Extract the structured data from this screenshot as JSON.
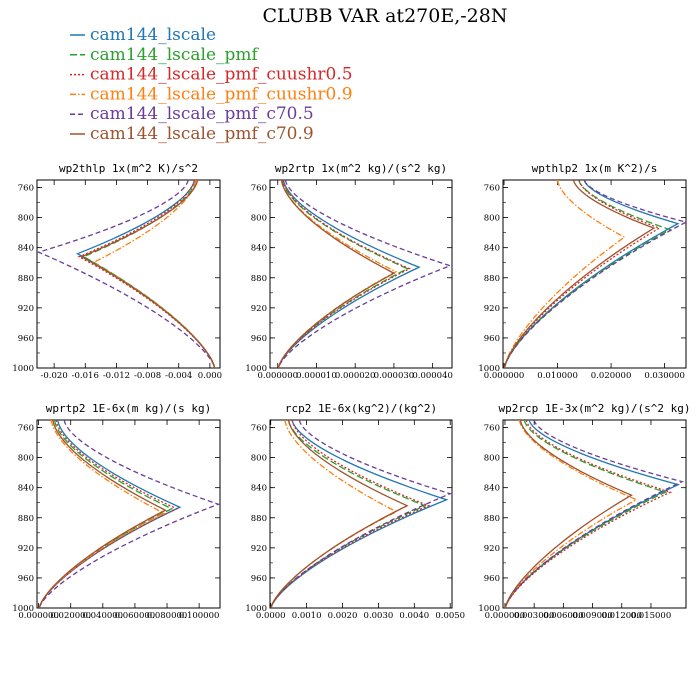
{
  "figure": {
    "title": "CLUBB VAR at270E,-28N"
  },
  "legend": [
    {
      "label": "cam144_lscale",
      "color": "#1f77b4",
      "dash": "solid"
    },
    {
      "label": "cam144_lscale_pmf",
      "color": "#2ca02c",
      "dash": "longdash"
    },
    {
      "label": "cam144_lscale_pmf_cuushr0.5",
      "color": "#d62728",
      "dash": "dot"
    },
    {
      "label": "cam144_lscale_pmf_cuushr0.9",
      "color": "#ff7f0e",
      "dash": "dashdot"
    },
    {
      "label": "cam144_lscale_pmf_c70.5",
      "color": "#6a3d9a",
      "dash": "dash"
    },
    {
      "label": "cam144_lscale_pmf_c70.9",
      "color": "#a0522d",
      "dash": "solid"
    }
  ],
  "chart_data": [
    {
      "type": "line",
      "title": "wp2thlp  1x(m^2 K)/s^2",
      "ylim": [
        1000,
        750
      ],
      "yticks": [
        760,
        800,
        840,
        880,
        920,
        960,
        1000
      ],
      "xlim": [
        -0.0222,
        0.0013
      ],
      "xticks": [
        -0.02,
        -0.016,
        -0.012,
        -0.008,
        -0.004,
        0.0
      ],
      "xtick_labels": [
        "-0.020",
        "-0.016",
        "-0.012",
        "-0.008",
        "-0.004",
        "0.000"
      ],
      "profile": {
        "kind": "neg",
        "top_y": 750,
        "bottom_y": 1000,
        "bottom_x": 0.0006,
        "top_x": -0.0004,
        "top_frac": 0.15
      },
      "series": [
        {
          "name": "cam144_lscale",
          "peak_x": -0.017,
          "peak_y": 848,
          "top_x": -0.002
        },
        {
          "name": "cam144_lscale_pmf",
          "peak_x": -0.0162,
          "peak_y": 852,
          "top_x": -0.0018
        },
        {
          "name": "cam144_lscale_pmf_cuushr0.5",
          "peak_x": -0.0168,
          "peak_y": 852,
          "top_x": -0.002
        },
        {
          "name": "cam144_lscale_pmf_cuushr0.9",
          "peak_x": -0.015,
          "peak_y": 860,
          "top_x": -0.0018
        },
        {
          "name": "cam144_lscale_pmf_c70.5",
          "peak_x": -0.022,
          "peak_y": 846,
          "top_x": -0.0028
        },
        {
          "name": "cam144_lscale_pmf_c70.9",
          "peak_x": -0.0165,
          "peak_y": 852,
          "top_x": -0.0016
        }
      ]
    },
    {
      "type": "line",
      "title": "wp2rtp  1x(m^2 kg)/(s^2 kg)",
      "ylim": [
        1000,
        750
      ],
      "yticks": [
        760,
        800,
        840,
        880,
        920,
        960,
        1000
      ],
      "xlim": [
        -2e-06,
        4.5e-05
      ],
      "xticks": [
        0.0,
        1e-05,
        2e-05,
        3e-05,
        4e-05
      ],
      "xtick_labels": [
        "0.000000",
        "0.000010",
        "0.000020",
        "0.000030",
        "0.000040"
      ],
      "profile": {
        "kind": "pos",
        "top_y": 750,
        "bottom_y": 1000,
        "bottom_x": 2e-07,
        "top_x": 5e-07,
        "top_frac": 0.15
      },
      "series": [
        {
          "name": "cam144_lscale",
          "peak_x": 3.65e-05,
          "peak_y": 866,
          "top_x": 1.5e-06
        },
        {
          "name": "cam144_lscale_pmf",
          "peak_x": 3.35e-05,
          "peak_y": 868,
          "top_x": 1.2e-06
        },
        {
          "name": "cam144_lscale_pmf_cuushr0.5",
          "peak_x": 3.4e-05,
          "peak_y": 868,
          "top_x": 1.4e-06
        },
        {
          "name": "cam144_lscale_pmf_cuushr0.9",
          "peak_x": 3.05e-05,
          "peak_y": 872,
          "top_x": 1e-06
        },
        {
          "name": "cam144_lscale_pmf_c70.5",
          "peak_x": 4.45e-05,
          "peak_y": 864,
          "top_x": 2e-06
        },
        {
          "name": "cam144_lscale_pmf_c70.9",
          "peak_x": 3e-05,
          "peak_y": 874,
          "top_x": 1e-06
        }
      ]
    },
    {
      "type": "line",
      "title": "wpthlp2  1x(m K^2)/s",
      "ylim": [
        1000,
        750
      ],
      "yticks": [
        760,
        800,
        840,
        880,
        920,
        960,
        1000
      ],
      "xlim": [
        -0.0002,
        0.034
      ],
      "xticks": [
        0.0,
        0.01,
        0.02,
        0.03
      ],
      "xtick_labels": [
        "0.000000",
        "0.010000",
        "0.020000",
        "0.030000"
      ],
      "profile": {
        "kind": "pos",
        "top_y": 750,
        "bottom_y": 1000,
        "bottom_x": 0.0001,
        "top_x": 0.008,
        "top_frac": 0.55
      },
      "series": [
        {
          "name": "cam144_lscale",
          "peak_x": 0.0325,
          "peak_y": 808,
          "top_x": 0.015
        },
        {
          "name": "cam144_lscale_pmf",
          "peak_x": 0.031,
          "peak_y": 816,
          "top_x": 0.014
        },
        {
          "name": "cam144_lscale_pmf_cuushr0.5",
          "peak_x": 0.029,
          "peak_y": 814,
          "top_x": 0.014
        },
        {
          "name": "cam144_lscale_pmf_cuushr0.9",
          "peak_x": 0.0225,
          "peak_y": 826,
          "top_x": 0.01
        },
        {
          "name": "cam144_lscale_pmf_c70.5",
          "peak_x": 0.034,
          "peak_y": 806,
          "top_x": 0.015
        },
        {
          "name": "cam144_lscale_pmf_c70.9",
          "peak_x": 0.028,
          "peak_y": 814,
          "top_x": 0.013
        }
      ]
    },
    {
      "type": "line",
      "title": "wprtp2  1E-6x(m kg)/(s kg)",
      "ylim": [
        1000,
        750
      ],
      "yticks": [
        760,
        800,
        840,
        880,
        920,
        960,
        1000
      ],
      "xlim": [
        -0.001,
        0.113
      ],
      "xticks": [
        0.0,
        0.02,
        0.04,
        0.06,
        0.08,
        0.1
      ],
      "xtick_labels": [
        "0.000000",
        "0.020000",
        "0.040000",
        "0.060000",
        "0.080000",
        "0.100000"
      ],
      "profile": {
        "kind": "pos",
        "top_y": 750,
        "bottom_y": 1000,
        "bottom_x": 0.0005,
        "top_x": 0.005,
        "top_frac": 0.15
      },
      "series": [
        {
          "name": "cam144_lscale",
          "peak_x": 0.088,
          "peak_y": 866,
          "top_x": 0.012
        },
        {
          "name": "cam144_lscale_pmf",
          "peak_x": 0.083,
          "peak_y": 868,
          "top_x": 0.01
        },
        {
          "name": "cam144_lscale_pmf_cuushr0.5",
          "peak_x": 0.086,
          "peak_y": 868,
          "top_x": 0.011
        },
        {
          "name": "cam144_lscale_pmf_cuushr0.9",
          "peak_x": 0.078,
          "peak_y": 874,
          "top_x": 0.008
        },
        {
          "name": "cam144_lscale_pmf_c70.5",
          "peak_x": 0.112,
          "peak_y": 862,
          "top_x": 0.016
        },
        {
          "name": "cam144_lscale_pmf_c70.9",
          "peak_x": 0.079,
          "peak_y": 870,
          "top_x": 0.009
        }
      ]
    },
    {
      "type": "line",
      "title": "rcp2  1E-6x(kg^2)/(kg^2)",
      "ylim": [
        1000,
        750
      ],
      "yticks": [
        760,
        800,
        840,
        880,
        920,
        960,
        1000
      ],
      "xlim": [
        -2e-05,
        0.00505
      ],
      "xticks": [
        0.0,
        0.001,
        0.002,
        0.003,
        0.004,
        0.005
      ],
      "xtick_labels": [
        "0.0000",
        "0.0010",
        "0.0020",
        "0.0030",
        "0.0040",
        "0.0050"
      ],
      "profile": {
        "kind": "pos",
        "top_y": 750,
        "bottom_y": 1000,
        "bottom_x": 1e-05,
        "top_x": 0.0001,
        "top_frac": 0.15
      },
      "series": [
        {
          "name": "cam144_lscale",
          "peak_x": 0.0049,
          "peak_y": 856,
          "top_x": 0.0006
        },
        {
          "name": "cam144_lscale_pmf",
          "peak_x": 0.0043,
          "peak_y": 864,
          "top_x": 0.0005
        },
        {
          "name": "cam144_lscale_pmf_cuushr0.5",
          "peak_x": 0.0044,
          "peak_y": 864,
          "top_x": 0.0006
        },
        {
          "name": "cam144_lscale_pmf_cuushr0.9",
          "peak_x": 0.0035,
          "peak_y": 872,
          "top_x": 0.0004
        },
        {
          "name": "cam144_lscale_pmf_c70.5",
          "peak_x": 0.005,
          "peak_y": 848,
          "top_x": 0.0008
        },
        {
          "name": "cam144_lscale_pmf_c70.9",
          "peak_x": 0.0038,
          "peak_y": 864,
          "top_x": 0.0005
        }
      ]
    },
    {
      "type": "line",
      "title": "wp2rcp  1E-3x(m^2 kg)/(s^2 kg)",
      "ylim": [
        1000,
        750
      ],
      "yticks": [
        760,
        800,
        840,
        880,
        920,
        960,
        1000
      ],
      "xlim": [
        -0.0002,
        0.0186
      ],
      "xticks": [
        0.0,
        0.003,
        0.006,
        0.009,
        0.012,
        0.015
      ],
      "xtick_labels": [
        "0.000000",
        "0.003000",
        "0.006000",
        "0.009000",
        "0.012000",
        "0.015000"
      ],
      "profile": {
        "kind": "pos",
        "top_y": 750,
        "bottom_y": 1000,
        "bottom_x": 5e-05,
        "top_x": 0.0005,
        "top_frac": 0.15
      },
      "series": [
        {
          "name": "cam144_lscale",
          "peak_x": 0.0178,
          "peak_y": 836,
          "top_x": 0.0025
        },
        {
          "name": "cam144_lscale_pmf",
          "peak_x": 0.0165,
          "peak_y": 846,
          "top_x": 0.002
        },
        {
          "name": "cam144_lscale_pmf_cuushr0.5",
          "peak_x": 0.017,
          "peak_y": 846,
          "top_x": 0.0022
        },
        {
          "name": "cam144_lscale_pmf_cuushr0.9",
          "peak_x": 0.0135,
          "peak_y": 856,
          "top_x": 0.0015
        },
        {
          "name": "cam144_lscale_pmf_c70.5",
          "peak_x": 0.0182,
          "peak_y": 832,
          "top_x": 0.003
        },
        {
          "name": "cam144_lscale_pmf_c70.9",
          "peak_x": 0.013,
          "peak_y": 850,
          "top_x": 0.0016
        }
      ]
    }
  ]
}
